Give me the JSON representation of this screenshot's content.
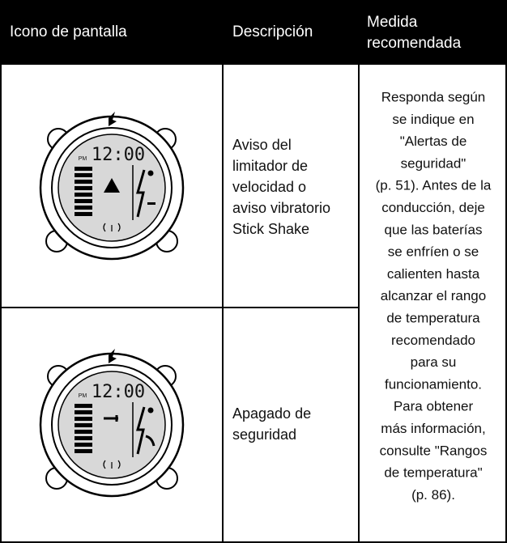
{
  "table": {
    "header": [
      "Icono de pantalla",
      "Descripción",
      [
        "Medida",
        "recomendada"
      ]
    ],
    "rows": [
      {
        "icon": {
          "time": "12:00",
          "period": "PM"
        },
        "description": [
          "Aviso del",
          "limitador de",
          "velocidad o",
          "aviso vibratorio",
          "Stick Shake"
        ]
      },
      {
        "icon": {
          "time": "12:00",
          "period": "PM"
        },
        "description": [
          "Apagado de",
          "seguridad"
        ]
      }
    ],
    "action": [
      "Responda según",
      "se indique en",
      "\"Alertas de",
      "seguridad\"",
      "(p. 51). Antes de la",
      "conducción, deje",
      "que las baterías",
      "se enfríen o se",
      "calienten hasta",
      "alcanzar el rango",
      "de temperatura",
      "recomendado",
      "para su",
      "funcionamiento.",
      "Para obtener",
      "más información,",
      "consulte \"Rangos",
      "de temperatura\"",
      "(p. 86)."
    ]
  }
}
